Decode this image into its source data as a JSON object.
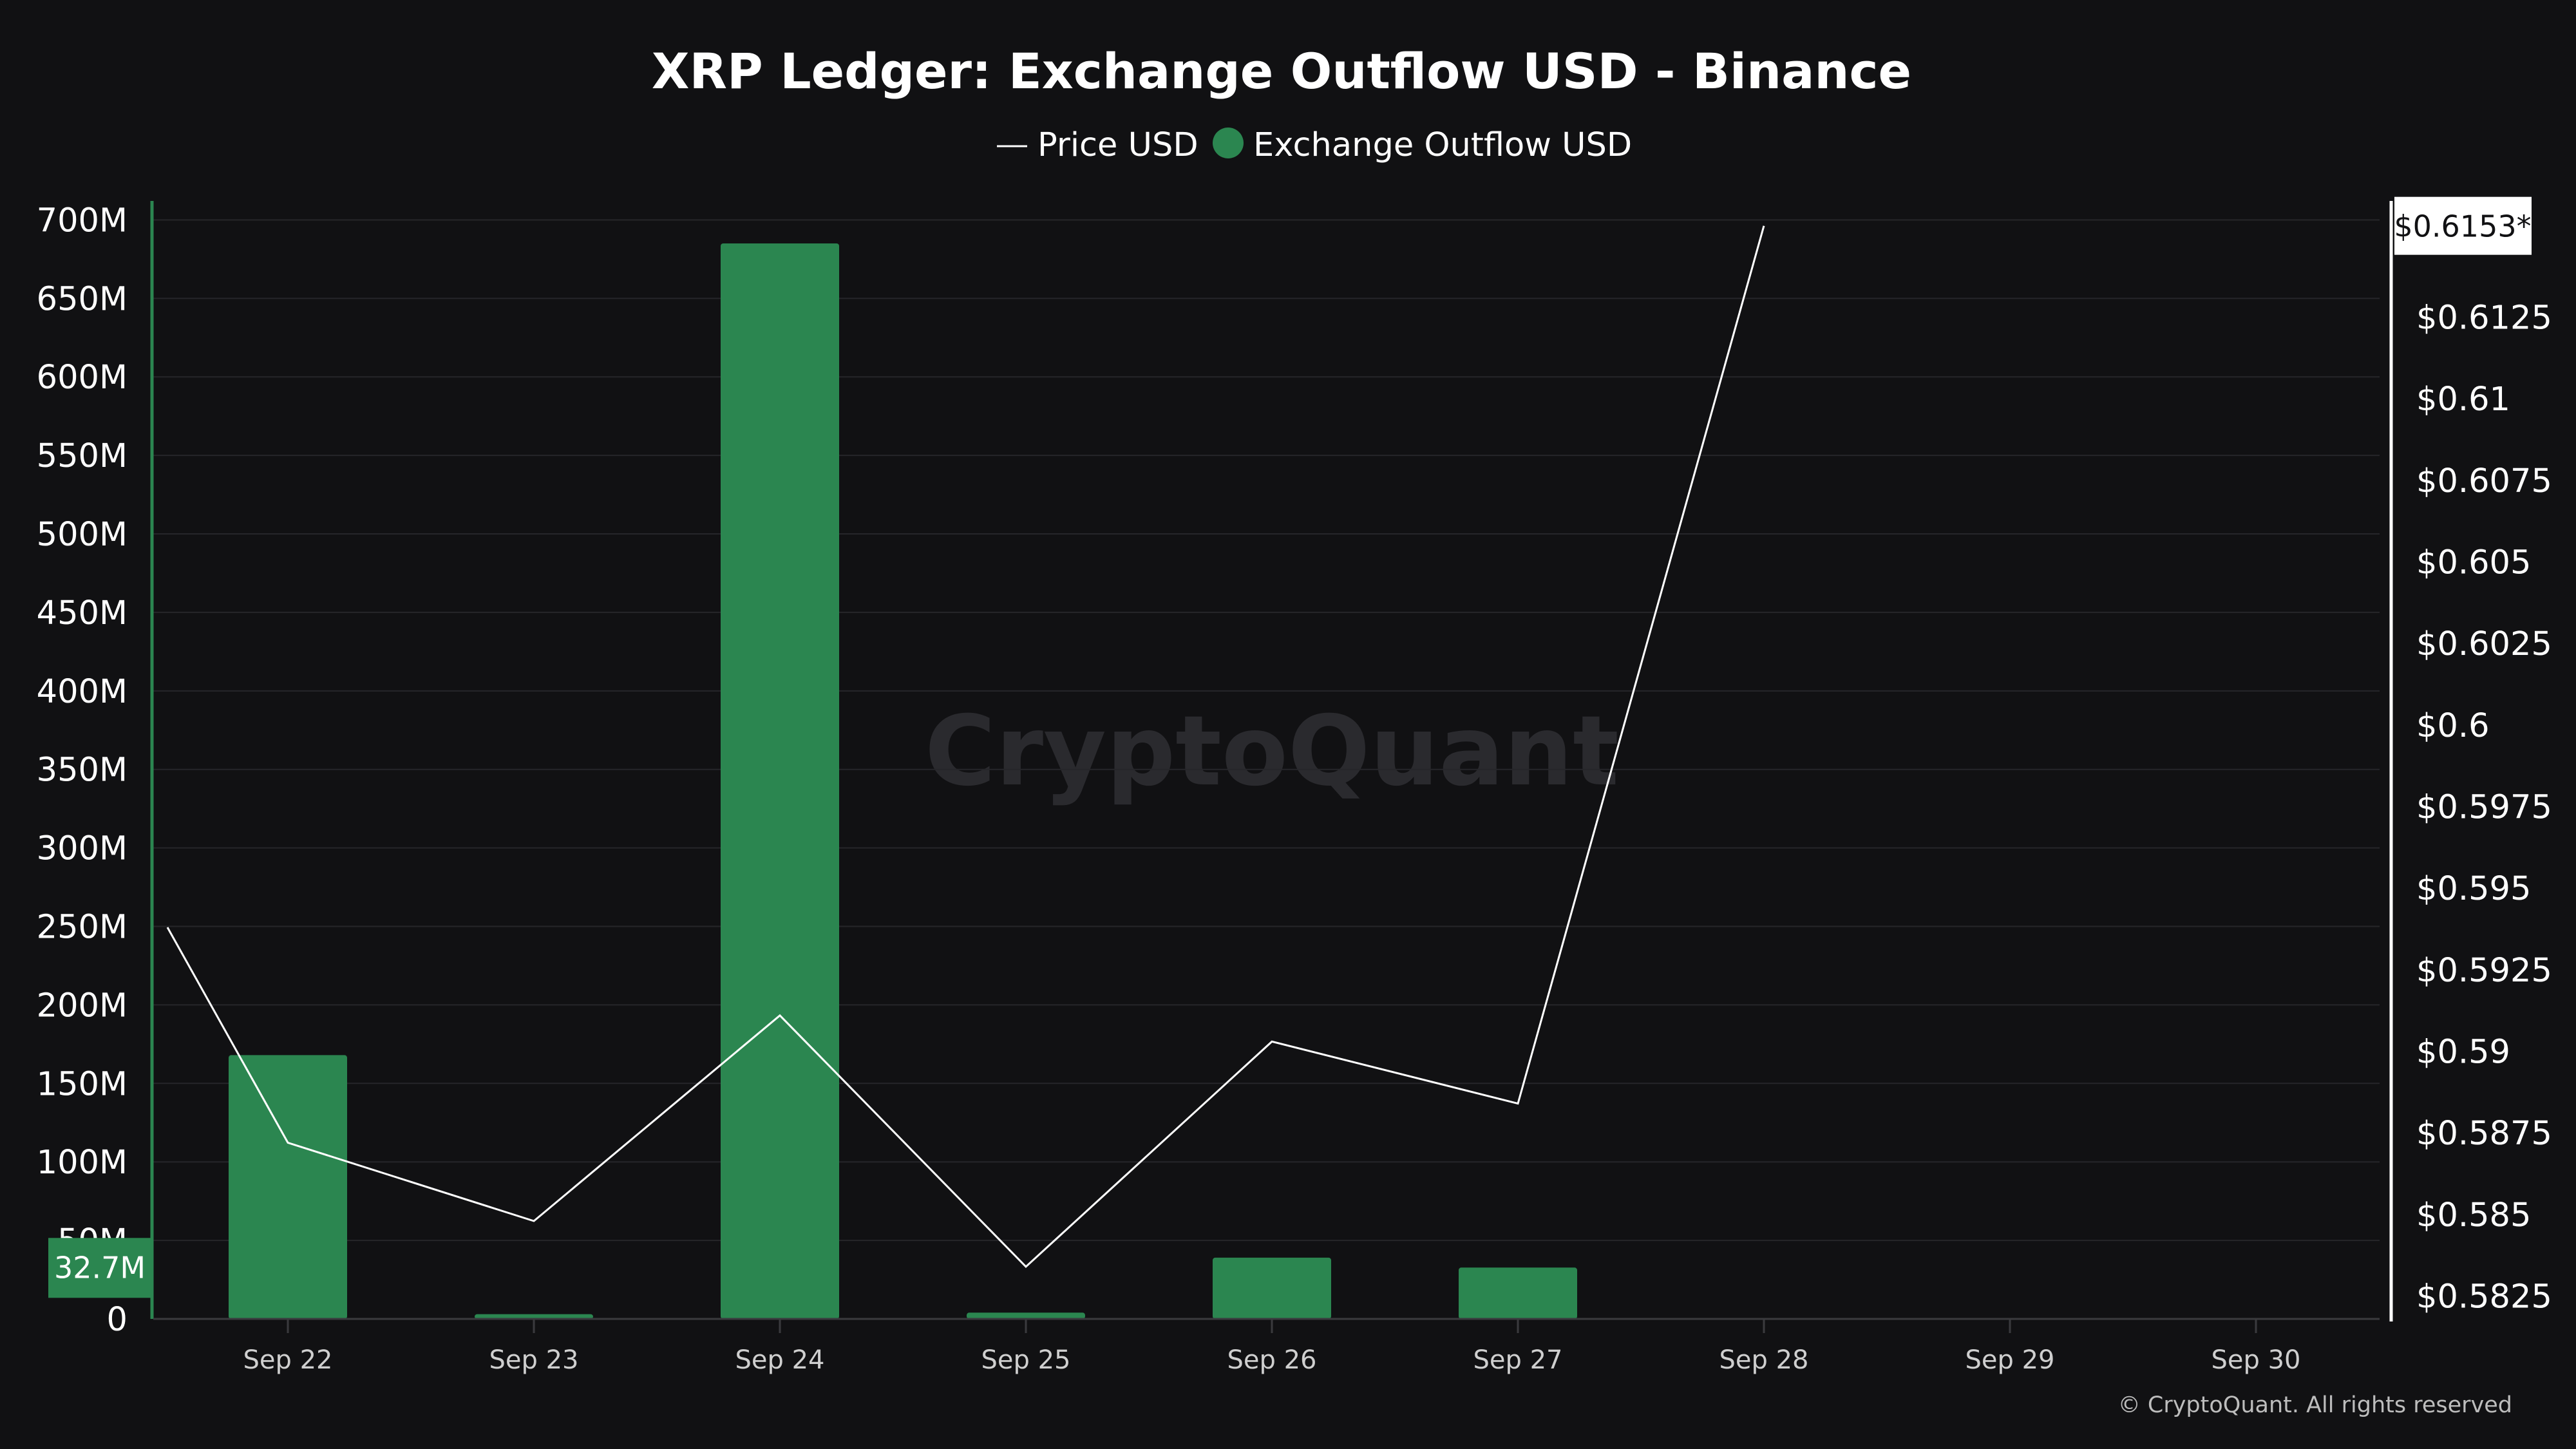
{
  "chart_data": {
    "type": "bar",
    "title": "XRP Ledger: Exchange Outflow USD - Binance",
    "categories": [
      "Sep 22",
      "Sep 23",
      "Sep 24",
      "Sep 25",
      "Sep 26",
      "Sep 27",
      "Sep 28",
      "Sep 29",
      "Sep 30"
    ],
    "series": [
      {
        "name": "Exchange Outflow USD",
        "type": "bar",
        "axis": "left",
        "color": "#2b8650",
        "values": [
          168000000,
          3000000,
          685000000,
          4000000,
          39000000,
          32700000,
          null,
          null,
          null
        ]
      },
      {
        "name": "Price USD",
        "type": "line",
        "axis": "right",
        "color": "#ffffff",
        "x": [
          "Sep 21",
          "Sep 22",
          "Sep 23",
          "Sep 24",
          "Sep 25",
          "Sep 26",
          "Sep 27",
          "Sep 28"
        ],
        "values": [
          0.5938,
          0.5872,
          0.5848,
          0.5911,
          0.5834,
          0.5903,
          0.5884,
          0.6153
        ]
      }
    ],
    "yleft": {
      "lim": [
        0,
        717000000
      ],
      "ticks": [
        0,
        50000000,
        100000000,
        150000000,
        200000000,
        250000000,
        300000000,
        350000000,
        400000000,
        450000000,
        500000000,
        550000000,
        600000000,
        650000000,
        700000000
      ],
      "tick_labels": [
        "0",
        "50M",
        "100M",
        "150M",
        "200M",
        "250M",
        "300M",
        "350M",
        "400M",
        "450M",
        "500M",
        "550M",
        "600M",
        "650M",
        "700M"
      ]
    },
    "yright": {
      "lim": [
        0.5818,
        0.6163
      ],
      "ticks": [
        0.5825,
        0.585,
        0.5875,
        0.59,
        0.5925,
        0.595,
        0.5975,
        0.6,
        0.6025,
        0.605,
        0.6075,
        0.61,
        0.6125
      ],
      "tick_labels": [
        "$0.5825",
        "$0.585",
        "$0.5875",
        "$0.59",
        "$0.5925",
        "$0.595",
        "$0.5975",
        "$0.6",
        "$0.6025",
        "$0.605",
        "$0.6075",
        "$0.61",
        "$0.6125"
      ]
    },
    "legend": {
      "position": "top-center",
      "items": [
        {
          "label": "Price USD",
          "marker": "line"
        },
        {
          "label": "Exchange Outflow USD",
          "marker": "circle"
        }
      ]
    },
    "badges": {
      "left_value": "32.7M",
      "left_value_num": 32700000,
      "right_value": "$0.6153*",
      "right_value_num": 0.6153
    },
    "grid": true,
    "watermark": "CryptoQuant",
    "copyright": "© CryptoQuant. All rights reserved",
    "colors": {
      "background": "#111113",
      "bar": "#2b8650",
      "line": "#ffffff",
      "grid": "#26262a",
      "left_axis": "#2b8650",
      "right_axis": "#ffffff"
    }
  }
}
